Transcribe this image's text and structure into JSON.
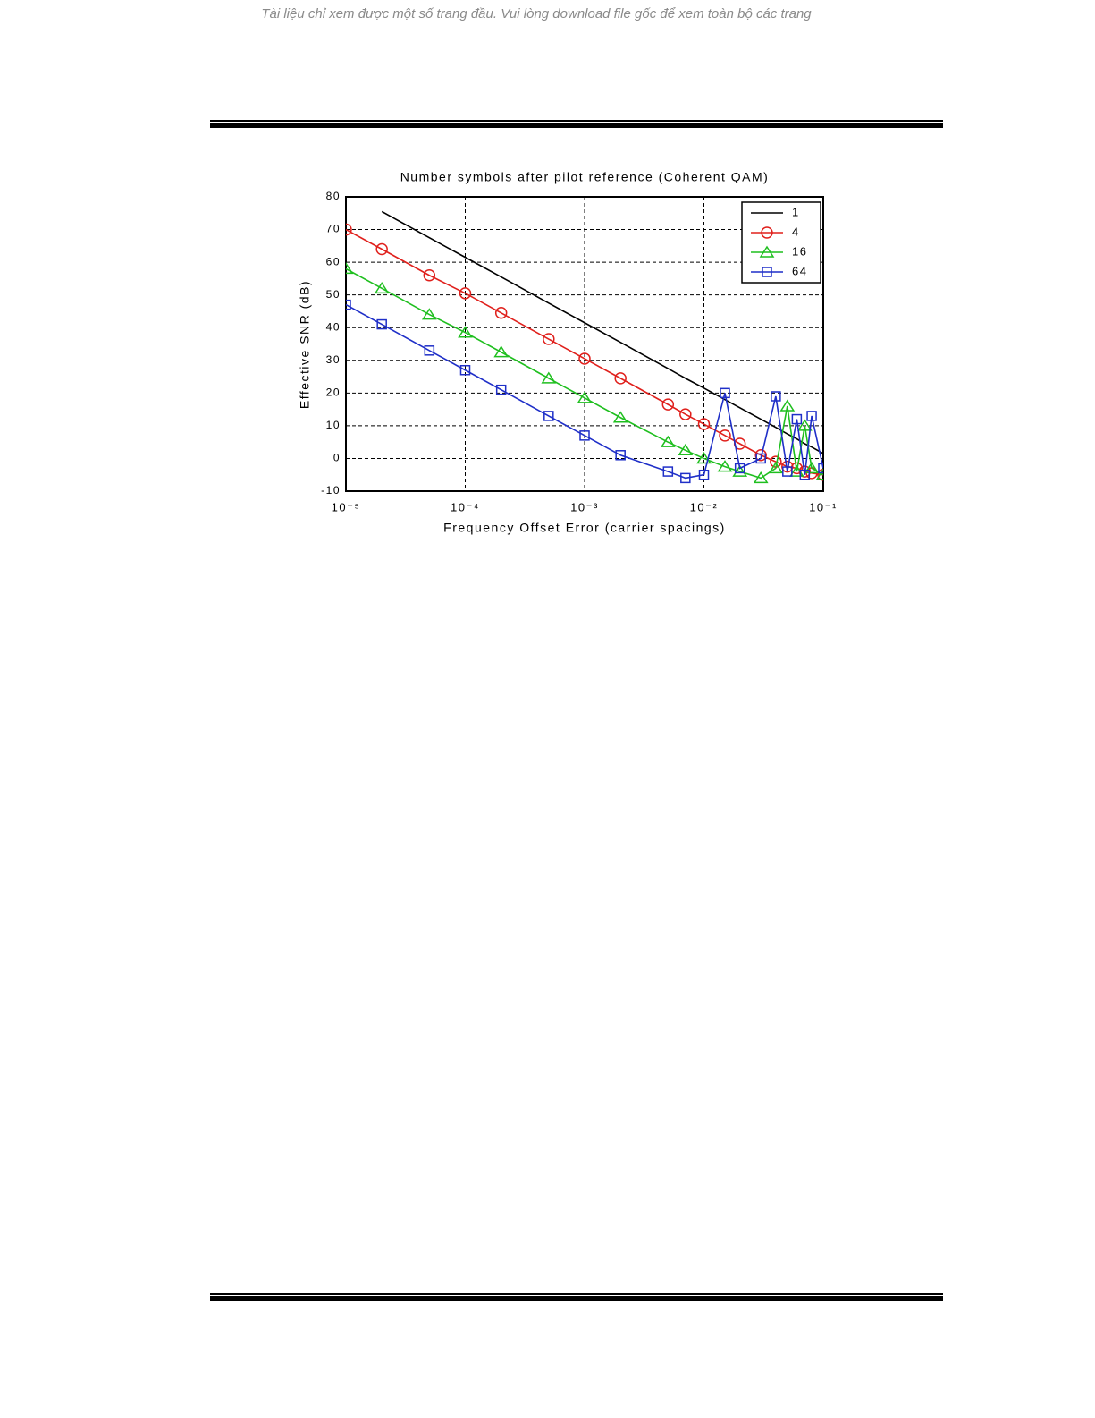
{
  "header": {
    "notice": "Tài liệu chỉ xem được một số trang đầu. Vui lòng download file gốc để xem toàn bộ các trang"
  },
  "chart_data": {
    "type": "line",
    "title": "Number symbols after pilot reference (Coherent QAM)",
    "x_label": "Frequency Offset Error (carrier spacings)",
    "y_label": "Effective SNR (dB)",
    "x_scale": "log",
    "grid": true,
    "legend_position": "upper right",
    "xlim": [
      1e-05,
      0.1
    ],
    "ylim": [
      -10,
      80
    ],
    "xticks": [
      {
        "value": 1e-05,
        "label": "10⁻⁵"
      },
      {
        "value": 0.0001,
        "label": "10⁻⁴"
      },
      {
        "value": 0.001,
        "label": "10⁻³"
      },
      {
        "value": 0.01,
        "label": "10⁻²"
      },
      {
        "value": 0.1,
        "label": "10⁻¹"
      }
    ],
    "yticks": [
      -10,
      0,
      10,
      20,
      30,
      40,
      50,
      60,
      70,
      80
    ],
    "x": [
      1e-05,
      2e-05,
      5e-05,
      0.0001,
      0.0002,
      0.0005,
      0.001,
      0.002,
      0.005,
      0.007,
      0.01,
      0.015,
      0.02,
      0.03,
      0.04,
      0.05,
      0.06,
      0.07,
      0.08,
      0.1
    ],
    "series": [
      {
        "name": "1",
        "color": "#000000",
        "marker": "none",
        "values": [
          null,
          75.5,
          67.5,
          61.5,
          55.5,
          47.5,
          41.5,
          35.5,
          27.5,
          24.5,
          21.5,
          18,
          15.5,
          12,
          9.5,
          7.5,
          6,
          4.5,
          3.5,
          1.5
        ]
      },
      {
        "name": "4",
        "color": "#e0201c",
        "marker": "circle",
        "values": [
          70,
          64,
          56,
          50.5,
          44.5,
          36.5,
          30.5,
          24.5,
          16.5,
          13.5,
          10.5,
          7,
          4.5,
          1,
          -1,
          -2.5,
          -3,
          -4,
          -4.5,
          -5
        ]
      },
      {
        "name": "16",
        "color": "#1fbf1f",
        "marker": "triangle",
        "values": [
          58,
          52,
          44,
          38.5,
          32.5,
          24.5,
          18.5,
          12.5,
          5,
          2.5,
          0,
          -2.5,
          -4,
          -6,
          -3,
          16,
          -4,
          10,
          -3,
          -5
        ]
      },
      {
        "name": "64",
        "color": "#1f2fc8",
        "marker": "square",
        "values": [
          47,
          41,
          33,
          27,
          21,
          13,
          7,
          1,
          -4,
          -6,
          -5,
          20,
          -3,
          0,
          19,
          -4,
          12,
          -5,
          13,
          -3
        ]
      }
    ]
  }
}
